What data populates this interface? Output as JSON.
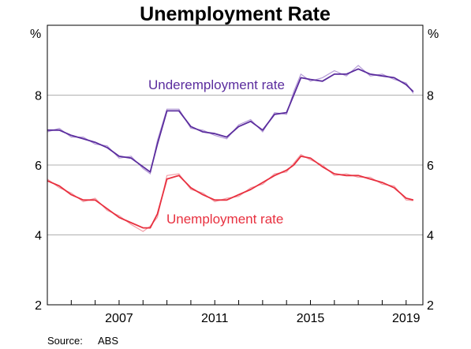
{
  "chart_data": {
    "type": "line",
    "title": "Unemployment Rate",
    "y_unit_left": "%",
    "y_unit_right": "%",
    "xlim": [
      2004.0,
      2019.7
    ],
    "ylim": [
      2,
      10
    ],
    "y_ticks": [
      2,
      4,
      6,
      8
    ],
    "x_tick_labels": [
      "2007",
      "2011",
      "2015",
      "2019"
    ],
    "x_ticks": [
      2007,
      2011,
      2015,
      2019
    ],
    "x_minor_ticks": [
      2005,
      2006,
      2007,
      2008,
      2009,
      2010,
      2011,
      2012,
      2013,
      2014,
      2015,
      2016,
      2017,
      2018,
      2019
    ],
    "grid": "horizontal",
    "source_label": "Source:",
    "source_value": "ABS",
    "colors": {
      "underemployment": "#5b2d9e",
      "underemployment_raw": "#b49ad6",
      "unemployment": "#e8303f",
      "unemployment_raw": "#f2a0a8",
      "grid": "#b0b0b0"
    },
    "series": [
      {
        "name": "Underemployment rate",
        "x": [
          2004.0,
          2004.5,
          2005.0,
          2005.5,
          2006.0,
          2006.5,
          2007.0,
          2007.5,
          2008.0,
          2008.3,
          2008.6,
          2009.0,
          2009.5,
          2010.0,
          2010.5,
          2011.0,
          2011.5,
          2012.0,
          2012.5,
          2013.0,
          2013.5,
          2014.0,
          2014.3,
          2014.6,
          2015.0,
          2015.5,
          2016.0,
          2016.5,
          2017.0,
          2017.5,
          2018.0,
          2018.5,
          2019.0,
          2019.3
        ],
        "smoothed": [
          7.0,
          7.0,
          6.85,
          6.75,
          6.65,
          6.5,
          6.25,
          6.2,
          5.95,
          5.8,
          6.6,
          7.55,
          7.55,
          7.1,
          6.95,
          6.9,
          6.8,
          7.1,
          7.25,
          7.0,
          7.45,
          7.5,
          8.0,
          8.5,
          8.45,
          8.4,
          8.6,
          8.6,
          8.75,
          8.6,
          8.55,
          8.5,
          8.3,
          8.1
        ],
        "raw": [
          6.95,
          7.05,
          6.8,
          6.8,
          6.6,
          6.55,
          6.2,
          6.25,
          5.9,
          5.75,
          6.7,
          7.6,
          7.6,
          7.05,
          7.0,
          6.85,
          6.75,
          7.15,
          7.3,
          6.95,
          7.5,
          7.45,
          8.1,
          8.6,
          8.4,
          8.5,
          8.7,
          8.55,
          8.85,
          8.55,
          8.6,
          8.45,
          8.35,
          8.05
        ]
      },
      {
        "name": "Unemployment rate",
        "x": [
          2004.0,
          2004.5,
          2005.0,
          2005.5,
          2006.0,
          2006.5,
          2007.0,
          2007.5,
          2008.0,
          2008.3,
          2008.6,
          2009.0,
          2009.5,
          2010.0,
          2010.5,
          2011.0,
          2011.5,
          2012.0,
          2012.5,
          2013.0,
          2013.5,
          2014.0,
          2014.3,
          2014.6,
          2015.0,
          2015.5,
          2016.0,
          2016.5,
          2017.0,
          2017.5,
          2018.0,
          2018.5,
          2019.0,
          2019.3
        ],
        "smoothed": [
          5.55,
          5.4,
          5.15,
          5.0,
          5.0,
          4.75,
          4.5,
          4.35,
          4.2,
          4.2,
          4.6,
          5.6,
          5.7,
          5.35,
          5.15,
          5.0,
          5.0,
          5.15,
          5.3,
          5.5,
          5.7,
          5.85,
          6.0,
          6.25,
          6.2,
          5.95,
          5.75,
          5.7,
          5.7,
          5.6,
          5.5,
          5.35,
          5.05,
          5.0
        ],
        "raw": [
          5.6,
          5.35,
          5.2,
          4.95,
          5.05,
          4.7,
          4.55,
          4.3,
          4.1,
          4.25,
          4.5,
          5.7,
          5.75,
          5.3,
          5.2,
          4.95,
          5.05,
          5.1,
          5.35,
          5.45,
          5.75,
          5.8,
          6.05,
          6.3,
          6.15,
          6.0,
          5.7,
          5.75,
          5.65,
          5.65,
          5.45,
          5.4,
          5.0,
          4.98
        ]
      }
    ]
  }
}
